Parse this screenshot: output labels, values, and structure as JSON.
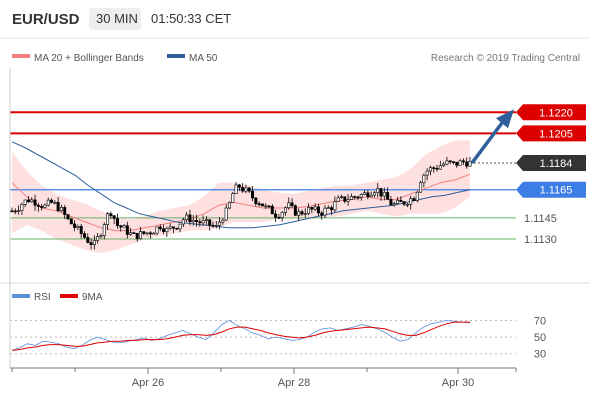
{
  "header": {
    "symbol": "EUR/USD",
    "interval": "30 MIN",
    "time": "01:50:33 CET"
  },
  "legend": {
    "ma20": "MA 20 + Bollinger Bands",
    "ma50": "MA 50",
    "ma20_color": "#f08080",
    "ma50_color": "#2e5f9a",
    "source": "Research © 2019 Trading Central"
  },
  "rsi_legend": {
    "rsi": "RSI",
    "ma": "9MA",
    "rsi_color": "#5b8fd8",
    "ma_color": "#e00000"
  },
  "colors": {
    "resistance": "#dd0000",
    "pivot": "#3d7ee6",
    "support": "#66b266",
    "last": "#333333",
    "arrow": "#2e5f9a",
    "band_fill": "#ffe0e0"
  },
  "chart_data": [
    {
      "type": "candlestick",
      "title": "",
      "x_ticks": [
        "Apr 26",
        "Apr 28",
        "Apr 30"
      ],
      "y_ticks": [
        "1.1220",
        "1.1205",
        "1.1184",
        "1.1165",
        "1.1145",
        "1.1130"
      ],
      "ylim": [
        1.1108,
        1.125
      ],
      "levels": {
        "resistance": [
          1.122,
          1.1205
        ],
        "pivot": 1.1165,
        "support": [
          1.1145,
          1.113
        ],
        "last": 1.1184
      },
      "forecast_arrow": {
        "from": 1.1184,
        "to": 1.122,
        "direction": "up"
      },
      "close_path": [
        1.115,
        1.1152,
        1.1156,
        1.1158,
        1.1157,
        1.1155,
        1.1153,
        1.1156,
        1.1154,
        1.115,
        1.1144,
        1.114,
        1.1136,
        1.1132,
        1.1128,
        1.1126,
        1.1134,
        1.1145,
        1.115,
        1.114,
        1.1138,
        1.1135,
        1.1132,
        1.1133,
        1.1134,
        1.1135,
        1.1137,
        1.114,
        1.1136,
        1.1138,
        1.114,
        1.1144,
        1.1145,
        1.1143,
        1.1142,
        1.1141,
        1.114,
        1.1138,
        1.1145,
        1.115,
        1.1162,
        1.1168,
        1.1165,
        1.1162,
        1.1158,
        1.1156,
        1.1152,
        1.115,
        1.1147,
        1.115,
        1.1154,
        1.115,
        1.1148,
        1.115,
        1.1151,
        1.115,
        1.1149,
        1.1151,
        1.1153,
        1.1157,
        1.1158,
        1.1159,
        1.116,
        1.1161,
        1.1162,
        1.1164,
        1.1166,
        1.1162,
        1.1158,
        1.1154,
        1.1155,
        1.1156,
        1.1158,
        1.116,
        1.1172,
        1.1178,
        1.118,
        1.1181,
        1.1183,
        1.1184,
        1.1183,
        1.1184,
        1.1185,
        1.1184
      ],
      "ma50_path": [
        1.1199,
        1.1195,
        1.119,
        1.1185,
        1.118,
        1.1175,
        1.1168,
        1.1162,
        1.1156,
        1.1152,
        1.1148,
        1.1146,
        1.1144,
        1.1142,
        1.1141,
        1.114,
        1.1139,
        1.1138,
        1.1138,
        1.1138,
        1.1139,
        1.114,
        1.1142,
        1.1144,
        1.1146,
        1.1148,
        1.115,
        1.1151,
        1.1152,
        1.1153,
        1.1154,
        1.1156,
        1.1158,
        1.116,
        1.1161,
        1.1163,
        1.1165
      ],
      "ma20_path": [
        1.117,
        1.116,
        1.1152,
        1.115,
        1.1146,
        1.1142,
        1.1138,
        1.1136,
        1.1136,
        1.1138,
        1.114,
        1.1142,
        1.1144,
        1.1148,
        1.1154,
        1.1156,
        1.1154,
        1.1152,
        1.1152,
        1.1152,
        1.1153,
        1.1155,
        1.1157,
        1.1158,
        1.116,
        1.1158,
        1.1158,
        1.1162,
        1.1166,
        1.117,
        1.1172,
        1.1176
      ],
      "bb_upper_path": [
        1.1192,
        1.1178,
        1.1168,
        1.1162,
        1.1158,
        1.1155,
        1.115,
        1.1146,
        1.1144,
        1.1146,
        1.115,
        1.1152,
        1.1154,
        1.116,
        1.117,
        1.117,
        1.1168,
        1.1165,
        1.1163,
        1.1162,
        1.1164,
        1.1166,
        1.1168,
        1.1168,
        1.117,
        1.1172,
        1.1174,
        1.118,
        1.119,
        1.1196,
        1.12,
        1.12
      ],
      "bb_lower_path": [
        1.1134,
        1.114,
        1.1136,
        1.113,
        1.1126,
        1.1122,
        1.112,
        1.1122,
        1.1126,
        1.113,
        1.1132,
        1.1134,
        1.1136,
        1.1136,
        1.1138,
        1.1142,
        1.1142,
        1.1142,
        1.1144,
        1.1144,
        1.1144,
        1.1145,
        1.1146,
        1.1148,
        1.115,
        1.1148,
        1.1146,
        1.1148,
        1.1148,
        1.1148,
        1.1152,
        1.116
      ]
    },
    {
      "type": "line",
      "title": "",
      "y_ticks": [
        "70",
        "50",
        "30"
      ],
      "ylim": [
        20,
        85
      ],
      "series": [
        {
          "name": "RSI",
          "values": [
            34,
            37,
            42,
            40,
            45,
            44,
            42,
            38,
            36,
            40,
            46,
            50,
            47,
            44,
            43,
            45,
            47,
            49,
            46,
            48,
            52,
            55,
            58,
            54,
            50,
            47,
            55,
            65,
            70,
            64,
            60,
            55,
            52,
            48,
            50,
            48,
            46,
            47,
            50,
            56,
            60,
            61,
            58,
            60,
            62,
            65,
            63,
            60,
            56,
            50,
            45,
            47,
            55,
            62,
            66,
            68,
            70,
            69,
            68,
            67
          ]
        },
        {
          "name": "9MA",
          "values": [
            34,
            35,
            37,
            38,
            40,
            41,
            41,
            40,
            39,
            39,
            41,
            43,
            44,
            45,
            45,
            46,
            46,
            47,
            47,
            47,
            48,
            50,
            52,
            53,
            53,
            52,
            53,
            56,
            60,
            62,
            62,
            60,
            58,
            55,
            53,
            51,
            50,
            49,
            50,
            52,
            55,
            57,
            58,
            59,
            60,
            61,
            62,
            61,
            60,
            57,
            54,
            52,
            52,
            55,
            59,
            63,
            66,
            68,
            68,
            68
          ]
        }
      ]
    }
  ]
}
